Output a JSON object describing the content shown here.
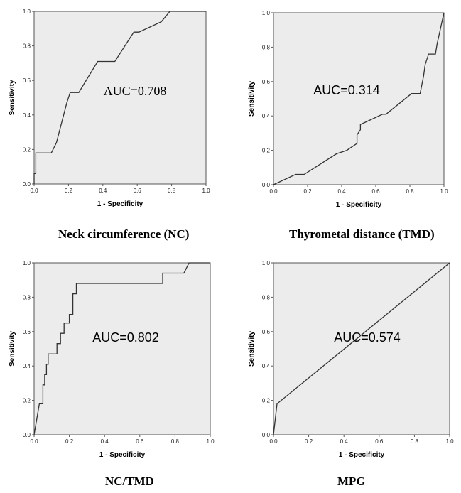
{
  "chart_data": [
    {
      "type": "line",
      "caption": "Neck circumference (NC)",
      "annotation": "AUC=0.708",
      "xlabel": "1 - Specificity",
      "ylabel": "Sensitivity",
      "xlim": [
        0,
        1
      ],
      "ylim": [
        0,
        1
      ],
      "ticks": [
        "0.0",
        "0.2",
        "0.4",
        "0.6",
        "0.8",
        "1.0"
      ],
      "x": [
        0,
        0,
        0.01,
        0.01,
        0.1,
        0.13,
        0.19,
        0.21,
        0.26,
        0.37,
        0.47,
        0.58,
        0.61,
        0.74,
        0.79,
        1.0
      ],
      "y": [
        0,
        0.06,
        0.06,
        0.18,
        0.18,
        0.24,
        0.47,
        0.53,
        0.53,
        0.71,
        0.71,
        0.88,
        0.88,
        0.94,
        1.0,
        1.0
      ]
    },
    {
      "type": "line",
      "caption": "Thyrometal distance (TMD)",
      "annotation": "AUC=0.314",
      "xlabel": "1 - Specificity",
      "ylabel": "Sensitivity",
      "xlim": [
        0,
        1
      ],
      "ylim": [
        0,
        1
      ],
      "ticks": [
        "0.0",
        "0.2",
        "0.4",
        "0.6",
        "0.8",
        "1.0"
      ],
      "x": [
        0,
        0.13,
        0.18,
        0.37,
        0.43,
        0.49,
        0.49,
        0.51,
        0.51,
        0.64,
        0.66,
        0.81,
        0.86,
        0.88,
        0.89,
        0.91,
        0.95,
        0.96,
        1.0
      ],
      "y": [
        0,
        0.06,
        0.06,
        0.18,
        0.2,
        0.24,
        0.29,
        0.32,
        0.35,
        0.41,
        0.41,
        0.53,
        0.53,
        0.63,
        0.7,
        0.76,
        0.76,
        0.82,
        1.0
      ]
    },
    {
      "type": "line",
      "caption": "NC/TMD",
      "annotation": "AUC=0.802",
      "xlabel": "1 - Specificity",
      "ylabel": "Sensitivity",
      "xlim": [
        0,
        1
      ],
      "ylim": [
        0,
        1
      ],
      "ticks": [
        "0.0",
        "0.2",
        "0.4",
        "0.6",
        "0.8",
        "1.0"
      ],
      "x": [
        0,
        0.03,
        0.05,
        0.05,
        0.06,
        0.06,
        0.07,
        0.07,
        0.08,
        0.08,
        0.13,
        0.13,
        0.15,
        0.15,
        0.17,
        0.17,
        0.2,
        0.2,
        0.22,
        0.22,
        0.24,
        0.24,
        0.73,
        0.73,
        0.85,
        0.88,
        1.0
      ],
      "y": [
        0,
        0.18,
        0.18,
        0.29,
        0.29,
        0.35,
        0.35,
        0.41,
        0.41,
        0.47,
        0.47,
        0.53,
        0.53,
        0.59,
        0.59,
        0.65,
        0.65,
        0.7,
        0.7,
        0.82,
        0.82,
        0.88,
        0.88,
        0.94,
        0.94,
        1.0,
        1.0
      ]
    },
    {
      "type": "line",
      "caption": "MPG",
      "annotation": "AUC=0.574",
      "xlabel": "1 - Specificity",
      "ylabel": "Sensitivity",
      "xlim": [
        0,
        1
      ],
      "ylim": [
        0,
        1
      ],
      "ticks": [
        "0.0",
        "0.2",
        "0.4",
        "0.6",
        "0.8",
        "1.0"
      ],
      "x": [
        0,
        0.02,
        1.0
      ],
      "y": [
        0,
        0.18,
        1.0
      ]
    }
  ]
}
